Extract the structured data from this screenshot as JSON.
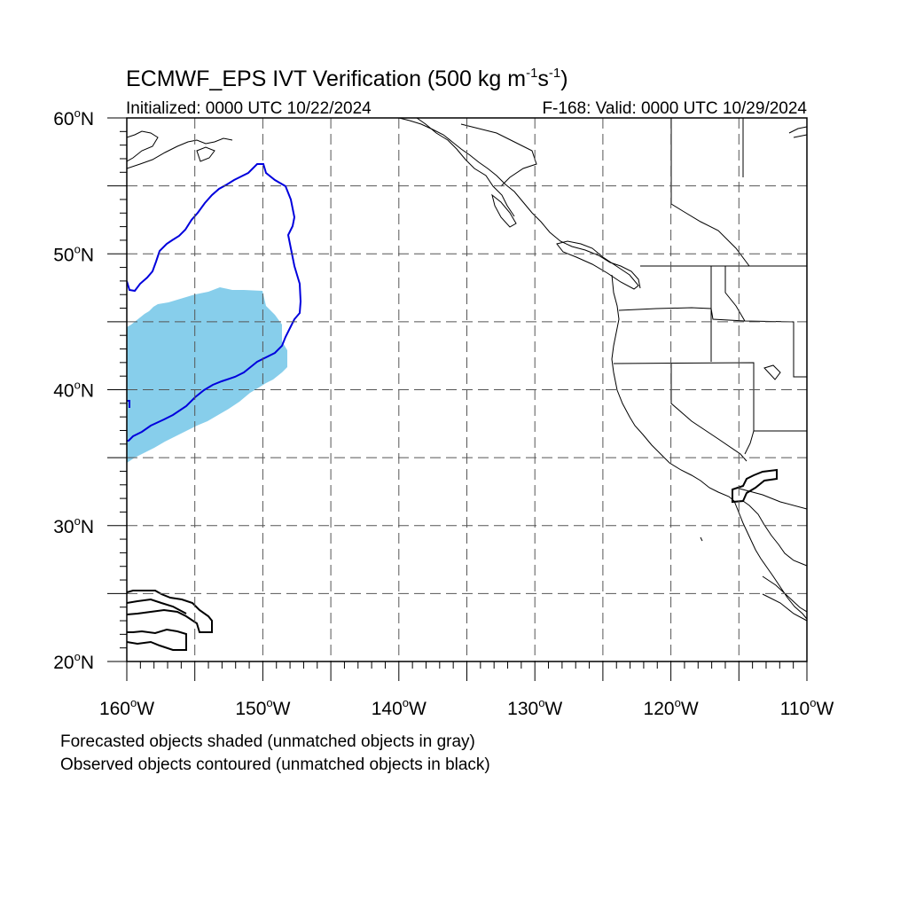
{
  "title": {
    "main": "ECMWF_EPS IVT Verification (500 kg m",
    "unit_exp1": "-1",
    "unit_s": "s",
    "unit_exp2": "-1",
    "close": ")"
  },
  "subtitle": {
    "left": "Initialized: 0000 UTC 10/22/2024",
    "right": "F-168: Valid: 0000 UTC 10/29/2024"
  },
  "map": {
    "lon_range": [
      -160,
      -110
    ],
    "lat_range": [
      20,
      60
    ],
    "lon_labels": [
      "160",
      "150",
      "140",
      "130",
      "120",
      "110"
    ],
    "lon_suffix": "W",
    "lat_labels": [
      "60",
      "50",
      "40",
      "30",
      "20"
    ],
    "lat_suffix": "N",
    "grid_lons": [
      -155,
      -150,
      -145,
      -140,
      -135,
      -130,
      -125,
      -120,
      -115
    ],
    "grid_lats": [
      55,
      50,
      45,
      40,
      35,
      30,
      25
    ],
    "forecast_color": "#87ceeb",
    "observed_matched_color": "#0000dd",
    "observed_unmatched_color": "#000000"
  },
  "footer": {
    "line1": "Forecasted objects shaded (unmatched objects in gray)",
    "line2": "Observed objects contoured (unmatched objects in black)"
  }
}
